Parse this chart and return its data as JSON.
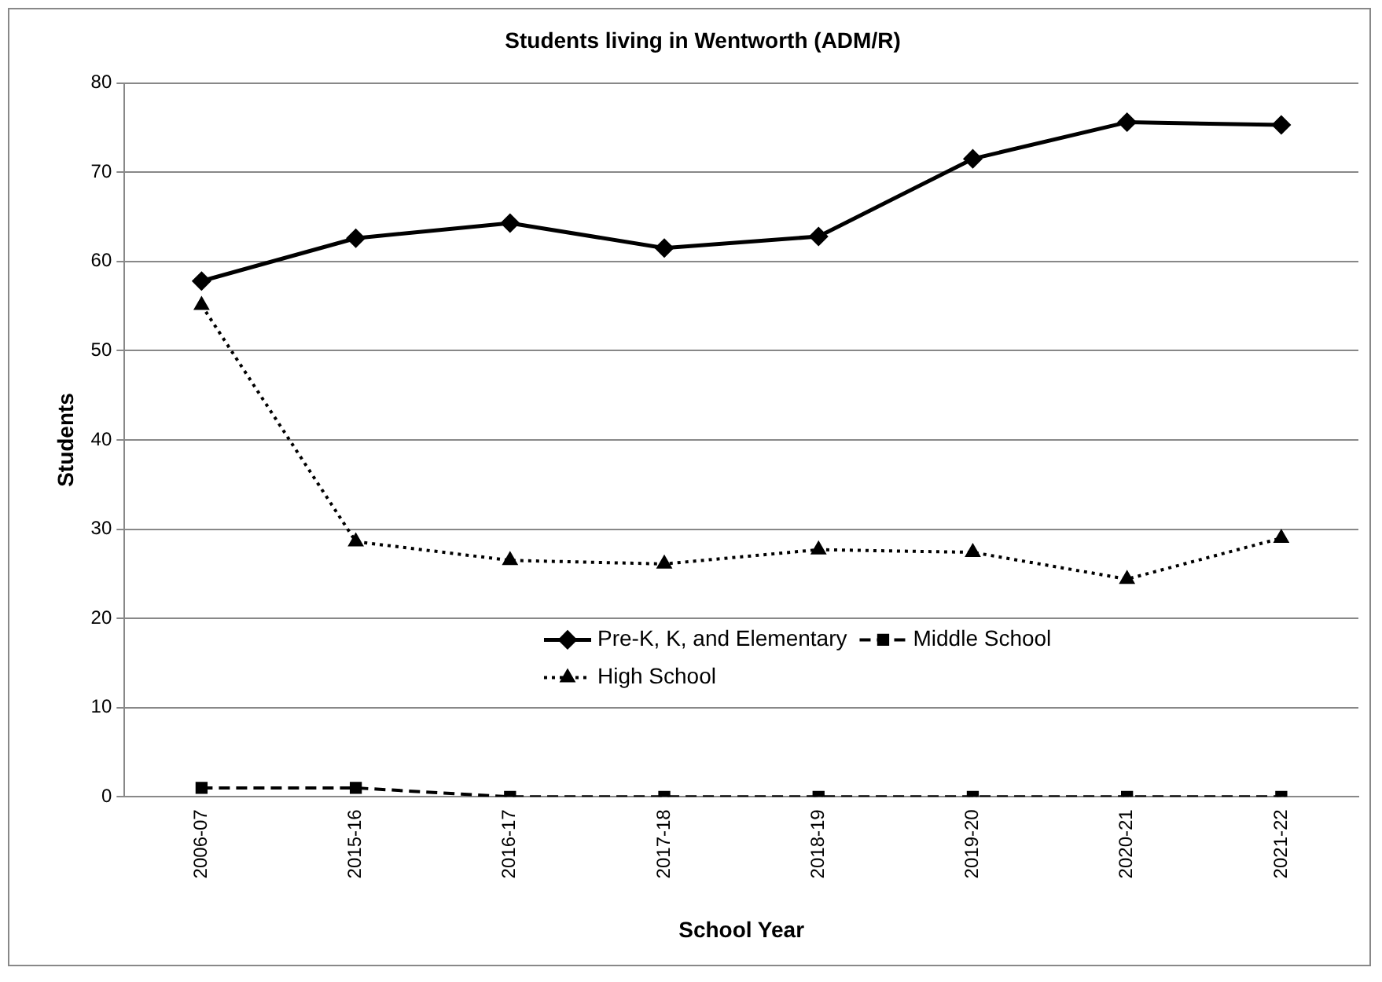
{
  "chart_data": {
    "type": "line",
    "title": "Students living in Wentworth (ADM/R)",
    "xlabel": "School Year",
    "ylabel": "Students",
    "categories": [
      "2006-07",
      "2015-16",
      "2016-17",
      "2017-18",
      "2018-19",
      "2019-20",
      "2020-21",
      "2021-22"
    ],
    "series": [
      {
        "name": "Pre-K, K, and Elementary",
        "color": "#000000",
        "marker": "diamond",
        "line_style": "solid",
        "values": [
          57.8,
          62.6,
          64.3,
          61.5,
          62.8,
          71.5,
          75.6,
          75.3
        ]
      },
      {
        "name": "Middle School",
        "color": "#000000",
        "marker": "square",
        "line_style": "dashed",
        "values": [
          1,
          1,
          0,
          0,
          0,
          0,
          0,
          0
        ]
      },
      {
        "name": "High School",
        "color": "#000000",
        "marker": "triangle",
        "line_style": "dotted",
        "values": [
          55.1,
          28.6,
          26.5,
          26.1,
          27.7,
          27.4,
          24.4,
          29.0
        ]
      }
    ],
    "ylim": [
      0,
      80
    ],
    "yticks": [
      0,
      10,
      20,
      30,
      40,
      50,
      60,
      70,
      80
    ],
    "grid": "y",
    "legend": "center"
  }
}
